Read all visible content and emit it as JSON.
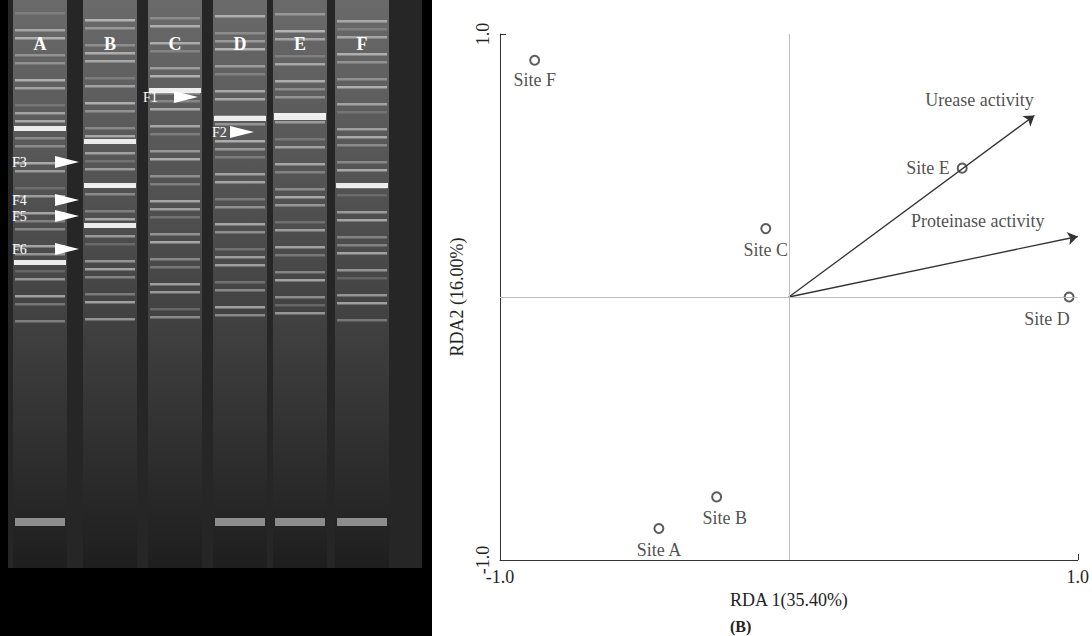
{
  "gel": {
    "lanes": [
      "A",
      "B",
      "C",
      "D",
      "E",
      "F"
    ],
    "bands": [
      "F1",
      "F2",
      "F3",
      "F4",
      "F5",
      "F6"
    ]
  },
  "chart_data": {
    "type": "scatter",
    "xlabel": "RDA 1(35.40%)",
    "ylabel": "RDA2 (16.00%)",
    "annotation": "(B)",
    "points": [
      {
        "name": "Site F",
        "x": -0.88,
        "y": 0.9
      },
      {
        "name": "Site C",
        "x": -0.08,
        "y": 0.26
      },
      {
        "name": "Site E",
        "x": 0.6,
        "y": 0.49
      },
      {
        "name": "Site D",
        "x": 0.97,
        "y": 0.0
      },
      {
        "name": "Site A",
        "x": -0.45,
        "y": -0.88
      },
      {
        "name": "Site B",
        "x": -0.25,
        "y": -0.76
      }
    ],
    "vectors": [
      {
        "name": "Urease activity",
        "from": [
          0,
          0
        ],
        "to": [
          0.85,
          0.69
        ]
      },
      {
        "name": "Proteinase activity",
        "from": [
          0,
          0
        ],
        "to": [
          1.0,
          0.23
        ]
      }
    ],
    "xlim": [
      -1,
      1
    ],
    "ylim": [
      -1,
      1
    ],
    "xticks": [
      {
        "value": -1,
        "label": "-1.0"
      },
      {
        "value": 1,
        "label": "1.0"
      }
    ],
    "yticks": [
      {
        "value": -1,
        "label": "-1.0"
      },
      {
        "value": 1,
        "label": "1.0"
      }
    ],
    "color": "#333333",
    "marker": "circle"
  }
}
